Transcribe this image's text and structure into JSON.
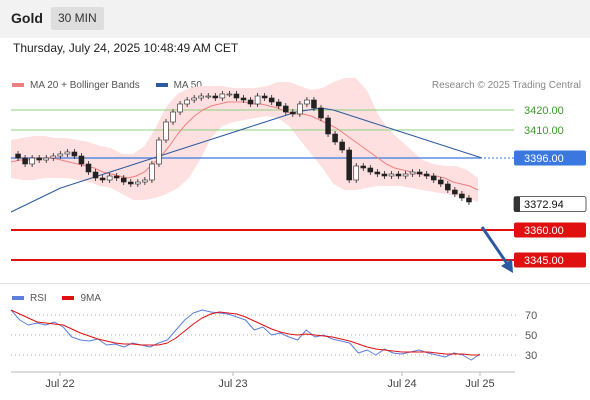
{
  "header": {
    "title": "Gold",
    "timeframe": "30 MIN"
  },
  "datetime": "Thursday, July 24, 2025 10:48:49 AM CET",
  "legend": {
    "ma20_label": "MA 20 + Bollinger Bands",
    "ma50_label": "MA 50",
    "research": "Research © 2025 Trading Central",
    "rsi_label": "RSI",
    "rsi_ma_label": "9MA"
  },
  "colors": {
    "ma20": "#f08080",
    "bollinger_fill": "#ffe0e0",
    "ma50": "#2c5aa0",
    "pivot": "#3a78e0",
    "support": "#e01010",
    "resistance": "#8fd07c",
    "resistance_label": "#3d9a2a",
    "candle": "#222222",
    "rsi": "#5b7ee0",
    "rsi_ma": "#e01010",
    "arrow": "#2c5aa0"
  },
  "chart_data": [
    {
      "type": "line",
      "title": "Gold 30 MIN",
      "x_ticks": [
        "Jul 22",
        "Jul 23",
        "Jul 24",
        "Jul 25"
      ],
      "y_range": [
        3335,
        3440
      ],
      "levels": [
        {
          "value": 3420.0,
          "label": "3420.00",
          "kind": "resistance"
        },
        {
          "value": 3410.0,
          "label": "3410.00",
          "kind": "resistance"
        },
        {
          "value": 3396.0,
          "label": "3396.00",
          "kind": "pivot"
        },
        {
          "value": 3372.94,
          "label": "3372.94",
          "kind": "last_price"
        },
        {
          "value": 3360.0,
          "label": "3360.00",
          "kind": "support"
        },
        {
          "value": 3345.0,
          "label": "3345.00",
          "kind": "support"
        }
      ],
      "price": [
        3398,
        3396,
        3393,
        3396,
        3395,
        3396,
        3397,
        3398,
        3399,
        3397,
        3393,
        3389,
        3386,
        3385,
        3387,
        3386,
        3384,
        3383,
        3384,
        3385,
        3393,
        3405,
        3414,
        3419,
        3423,
        3425,
        3426,
        3427,
        3427,
        3426,
        3428,
        3428,
        3426,
        3425,
        3423,
        3427,
        3426,
        3424,
        3422,
        3419,
        3418,
        3423,
        3425,
        3421,
        3416,
        3408,
        3404,
        3400,
        3385,
        3392,
        3391,
        3389,
        3388,
        3387,
        3388,
        3387,
        3388,
        3389,
        3388,
        3387,
        3385,
        3383,
        3380,
        3378,
        3376,
        3374
      ],
      "ma20": [
        3394,
        3395,
        3395,
        3396,
        3396,
        3396,
        3395,
        3394,
        3393,
        3392,
        3391,
        3389,
        3388,
        3387,
        3386,
        3387,
        3389,
        3393,
        3397,
        3402,
        3408,
        3413,
        3417,
        3420,
        3422,
        3423,
        3424,
        3424,
        3424,
        3423,
        3423,
        3422,
        3421,
        3419,
        3418,
        3418,
        3417,
        3415,
        3413,
        3411,
        3408,
        3405,
        3402,
        3399,
        3396,
        3393,
        3391,
        3390,
        3389,
        3388,
        3387,
        3387,
        3386,
        3384,
        3383,
        3382,
        3380
      ],
      "bb_upper": [
        3405,
        3406,
        3407,
        3407,
        3406,
        3406,
        3405,
        3404,
        3402,
        3401,
        3398,
        3398,
        3402,
        3411,
        3422,
        3428,
        3431,
        3432,
        3432,
        3432,
        3431,
        3431,
        3431,
        3432,
        3434,
        3434,
        3432,
        3430,
        3431,
        3434,
        3436,
        3436,
        3430,
        3418,
        3410,
        3405,
        3400,
        3395,
        3393,
        3392,
        3392,
        3390,
        3386
      ],
      "bb_lower": [
        3386,
        3385,
        3385,
        3386,
        3386,
        3386,
        3385,
        3384,
        3382,
        3381,
        3378,
        3375,
        3375,
        3376,
        3378,
        3381,
        3386,
        3395,
        3406,
        3412,
        3414,
        3415,
        3416,
        3417,
        3416,
        3412,
        3405,
        3398,
        3391,
        3383,
        3380,
        3380,
        3381,
        3382,
        3382,
        3382,
        3381,
        3380,
        3379,
        3378,
        3377,
        3376,
        3374
      ],
      "ma50": [
        3369,
        3372,
        3375,
        3378,
        3381,
        3383,
        3385,
        3387,
        3389,
        3391,
        3393,
        3395,
        3397,
        3399,
        3401,
        3403,
        3405,
        3407,
        3409,
        3411,
        3413,
        3415,
        3417,
        3419,
        3420,
        3421,
        3420,
        3418,
        3416,
        3414,
        3412,
        3410,
        3408,
        3406,
        3404,
        3402,
        3400,
        3398,
        3396
      ]
    },
    {
      "type": "line",
      "title": "RSI",
      "y_ticks": [
        70,
        50,
        30
      ],
      "y_range": [
        15,
        85
      ],
      "rsi": [
        75,
        65,
        60,
        62,
        60,
        63,
        58,
        48,
        45,
        44,
        46,
        40,
        41,
        38,
        42,
        40,
        38,
        42,
        45,
        55,
        65,
        72,
        75,
        73,
        72,
        71,
        68,
        65,
        55,
        58,
        50,
        52,
        48,
        45,
        55,
        48,
        50,
        46,
        44,
        42,
        32,
        35,
        30,
        36,
        32,
        31,
        33,
        35,
        32,
        30,
        28,
        32,
        30,
        25,
        31
      ],
      "rsi_ma": [
        75,
        71,
        67,
        63,
        62,
        61,
        60,
        56,
        52,
        49,
        46,
        44,
        42,
        41,
        41,
        40,
        40,
        40,
        42,
        47,
        54,
        61,
        67,
        71,
        73,
        72,
        71,
        68,
        64,
        60,
        56,
        53,
        51,
        50,
        51,
        50,
        49,
        48,
        46,
        44,
        41,
        38,
        36,
        35,
        34,
        33,
        33,
        33,
        33,
        32,
        31,
        31,
        31,
        30,
        30
      ]
    }
  ]
}
